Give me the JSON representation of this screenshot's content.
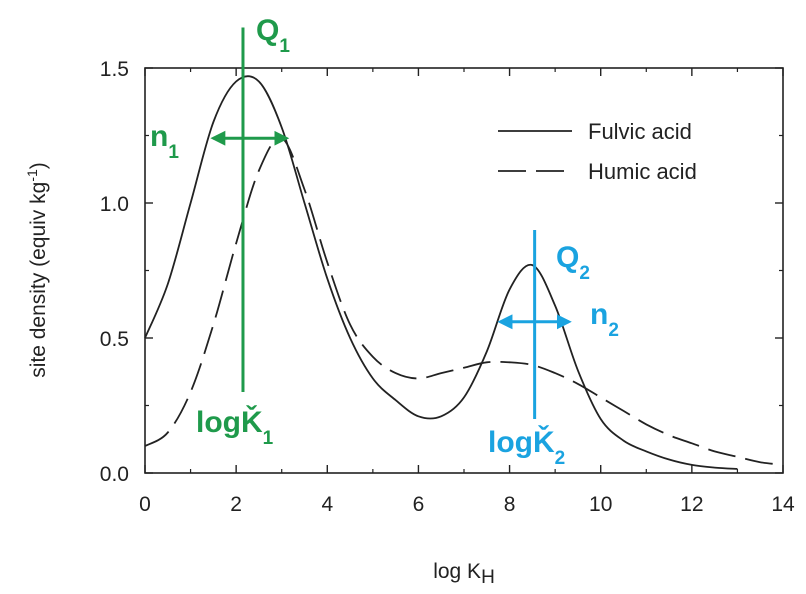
{
  "chart_data": {
    "type": "line",
    "title": "",
    "xlabel": {
      "base": "log K",
      "sub": "H"
    },
    "ylabel": {
      "text": "site density (equiv kg",
      "sup": "-1",
      "close": ")"
    },
    "xlim": [
      0,
      14
    ],
    "ylim": [
      0,
      1.5
    ],
    "x_ticks": [
      "0",
      "2",
      "4",
      "6",
      "8",
      "10",
      "12",
      "14"
    ],
    "y_ticks": [
      "0.0",
      "0.5",
      "1.0",
      "1.5"
    ],
    "grid": false,
    "legend_position": "top-right",
    "series": [
      {
        "name": "Fulvic acid",
        "style": "solid",
        "x": [
          0,
          0.5,
          1,
          1.5,
          2,
          2.5,
          3,
          3.5,
          4,
          4.5,
          5,
          5.5,
          6,
          6.5,
          7,
          7.5,
          8,
          8.5,
          9,
          9.5,
          10,
          10.5,
          11,
          11.5,
          12,
          12.5,
          13
        ],
        "y": [
          0.5,
          0.7,
          1.0,
          1.3,
          1.45,
          1.45,
          1.28,
          1.0,
          0.72,
          0.5,
          0.35,
          0.27,
          0.21,
          0.21,
          0.28,
          0.45,
          0.68,
          0.77,
          0.62,
          0.38,
          0.2,
          0.12,
          0.08,
          0.05,
          0.03,
          0.02,
          0.015
        ]
      },
      {
        "name": "Humic acid",
        "style": "dashed",
        "x": [
          0,
          0.5,
          1,
          1.5,
          2,
          2.5,
          3,
          3.5,
          4,
          4.5,
          5,
          5.5,
          6,
          6.5,
          7,
          7.5,
          8,
          8.5,
          9,
          9.5,
          10,
          10.5,
          11,
          11.5,
          12,
          12.5,
          13,
          13.5,
          14
        ],
        "y": [
          0.1,
          0.15,
          0.3,
          0.55,
          0.85,
          1.12,
          1.24,
          1.05,
          0.78,
          0.55,
          0.43,
          0.37,
          0.35,
          0.37,
          0.39,
          0.41,
          0.41,
          0.4,
          0.37,
          0.33,
          0.28,
          0.23,
          0.18,
          0.14,
          0.11,
          0.08,
          0.06,
          0.04,
          0.03
        ]
      }
    ]
  },
  "annotations": {
    "colors": {
      "green": "#1f9a4b",
      "blue": "#1aa3e0"
    },
    "peak1": {
      "logK": 2.15,
      "line_y_range": [
        0.3,
        1.65
      ],
      "halfwidth_x_range": [
        1.5,
        3.1
      ],
      "halfwidth_y": 1.24,
      "Q": {
        "base": "Q",
        "sub": "1"
      },
      "n": {
        "base": "n",
        "sub": "1"
      },
      "logK_label": {
        "base": "logǨ",
        "sub": "1"
      }
    },
    "peak2": {
      "logK": 8.55,
      "line_y_range": [
        0.2,
        0.9
      ],
      "halfwidth_x_range": [
        7.8,
        9.3
      ],
      "halfwidth_y": 0.56,
      "Q": {
        "base": "Q",
        "sub": "2"
      },
      "n": {
        "base": "n",
        "sub": "2"
      },
      "logK_label": {
        "base": "logǨ",
        "sub": "2"
      }
    }
  }
}
